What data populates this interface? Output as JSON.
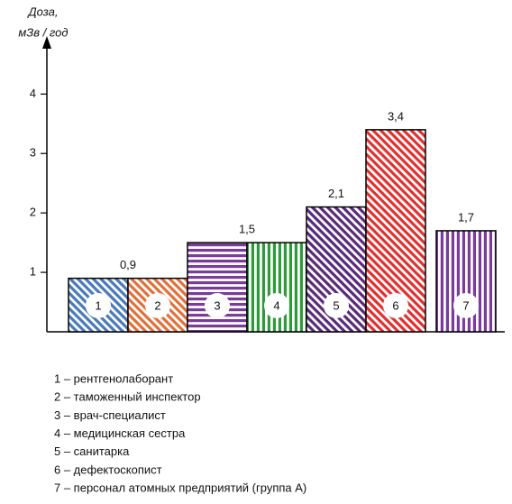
{
  "chart_data": {
    "type": "bar",
    "ylabel": [
      "Доза,",
      "мЗв / год"
    ],
    "categories": [
      "1",
      "2",
      "3",
      "4",
      "5",
      "6",
      "7"
    ],
    "values": [
      0.9,
      0.9,
      1.5,
      1.5,
      2.1,
      3.4,
      1.7
    ],
    "value_labels": [
      "0,9",
      null,
      "1,5",
      null,
      "2,1",
      "3,4",
      "1,7"
    ],
    "colors": [
      "#4a7ab8",
      "#e0703a",
      "#7a3b9a",
      "#2e9a3a",
      "#5a2a7a",
      "#e03030",
      "#7a3b9a"
    ],
    "hatch": [
      "diagonal",
      "diagonal",
      "horizontal",
      "vertical",
      "diagonal",
      "diagonal",
      "vertical"
    ],
    "ylim": [
      0,
      4.9
    ],
    "yticks": [
      1,
      2,
      3,
      4
    ],
    "grid": false,
    "legend": [
      "1 – рентгенолаборант",
      "2 – таможенный инспектор",
      "3 – врач-специалист",
      "4 – медицинская сестра",
      "5 – санитарка",
      "6 – дефектоскопист",
      "7 – персонал атомных предприятий (группа А)"
    ]
  }
}
